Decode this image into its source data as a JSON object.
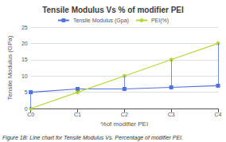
{
  "chart_data": {
    "type": "line",
    "title": "Tensile Modulus Vs % of modifier PEI",
    "xlabel": "%of modifier PEI",
    "ylabel": "Tensile Modulus (GPa)",
    "caption": "Figure 1B: Line chart for Tensile Modulus Vs. Percentage of modifier PEI.",
    "categories": [
      "C0",
      "C1",
      "C2",
      "C3",
      "C4"
    ],
    "series": [
      {
        "name": "Tensile Modulus (Gpa)",
        "values": [
          5,
          6,
          6,
          6.5,
          7
        ],
        "marker": "square"
      },
      {
        "name": "PEI(%)",
        "values": [
          0,
          5,
          10,
          15,
          20
        ],
        "marker": "circle"
      }
    ],
    "ylim": [
      0,
      25
    ],
    "yticks": [
      0,
      5,
      10,
      15,
      20,
      25
    ],
    "grid": true,
    "legend": "top"
  }
}
